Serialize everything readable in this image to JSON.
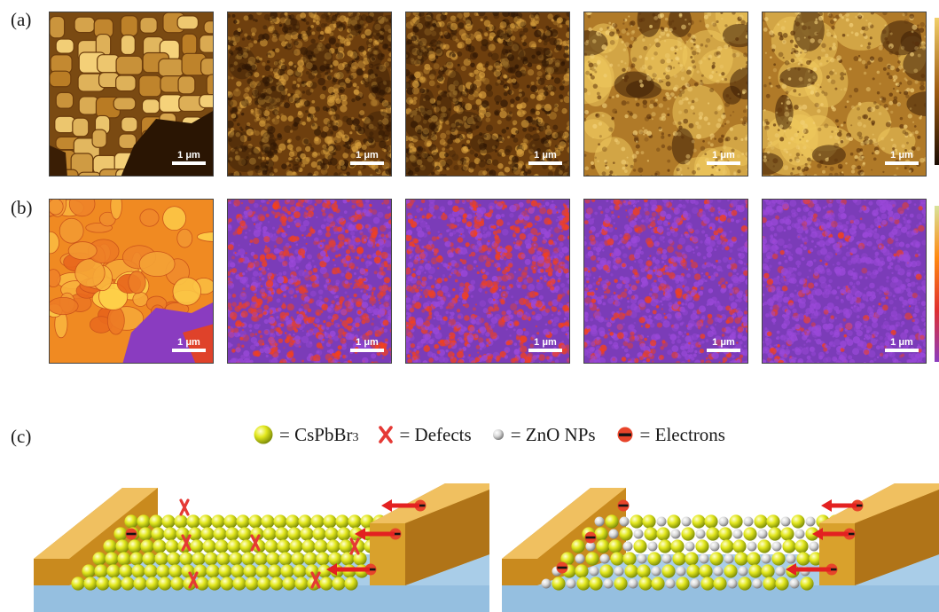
{
  "panel_labels": {
    "a": "(a)",
    "b": "(b)",
    "c": "(c)"
  },
  "scale_bar_label": "1 μm",
  "row_a_tiles": [
    "afm-1",
    "afm-2",
    "afm-3",
    "afm-4",
    "afm-5"
  ],
  "row_b_tiles": [
    "kpfm-1",
    "kpfm-2",
    "kpfm-3",
    "kpfm-4",
    "kpfm-5"
  ],
  "legend": {
    "cspbbr3": {
      "prefix": "= CsPbBr",
      "sub": "3"
    },
    "defects": "= Defects",
    "zno": "= ZnO NPs",
    "electrons": "= Electrons"
  },
  "colors": {
    "cspbbr3_sphere": "#e3e81e",
    "zno_sphere": "#d9d9d9",
    "electrode": "#d9a12c",
    "substrate": "#a9cde8",
    "defect": "#e53935",
    "arrow": "#e32121",
    "afm_dark": "#3a1e05",
    "afm_light": "#f2cf6a",
    "kpfm_purple": "#8a3cc0",
    "kpfm_orange": "#ff8a10"
  }
}
